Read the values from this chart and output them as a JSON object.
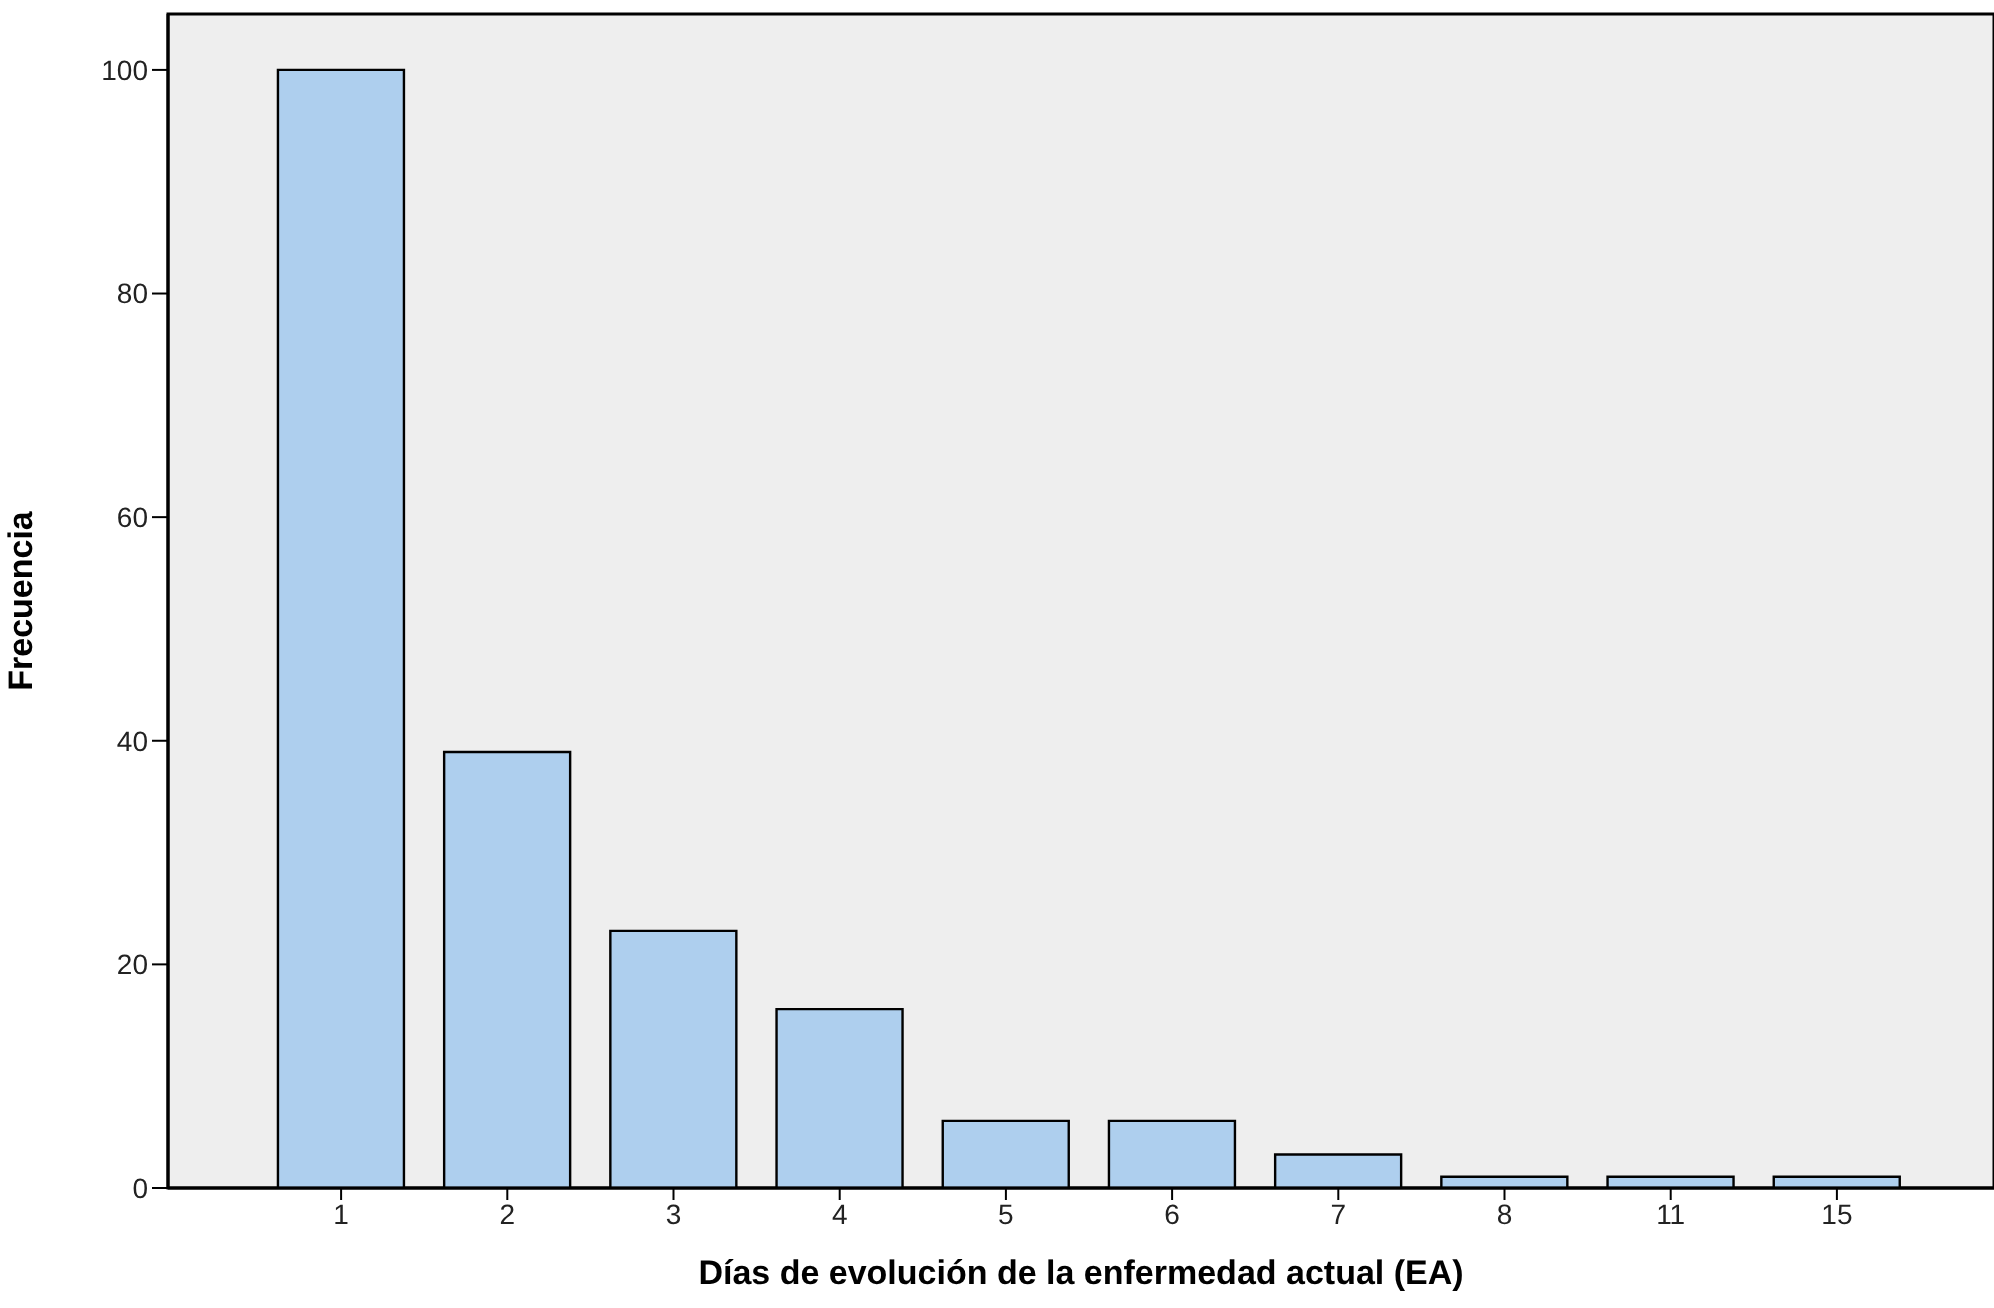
{
  "chart_data": {
    "type": "bar",
    "xlabel": "Días de evolución de la enfermedad actual (EA)",
    "ylabel": "Frecuencia",
    "categories": [
      "1",
      "2",
      "3",
      "4",
      "5",
      "6",
      "7",
      "8",
      "11",
      "15"
    ],
    "values": [
      100,
      39,
      23,
      16,
      6,
      6,
      3,
      1,
      1,
      1
    ],
    "color": "#aecfee",
    "ylim": [
      0,
      105
    ],
    "yticks": [
      0,
      20,
      40,
      60,
      80,
      100
    ]
  }
}
